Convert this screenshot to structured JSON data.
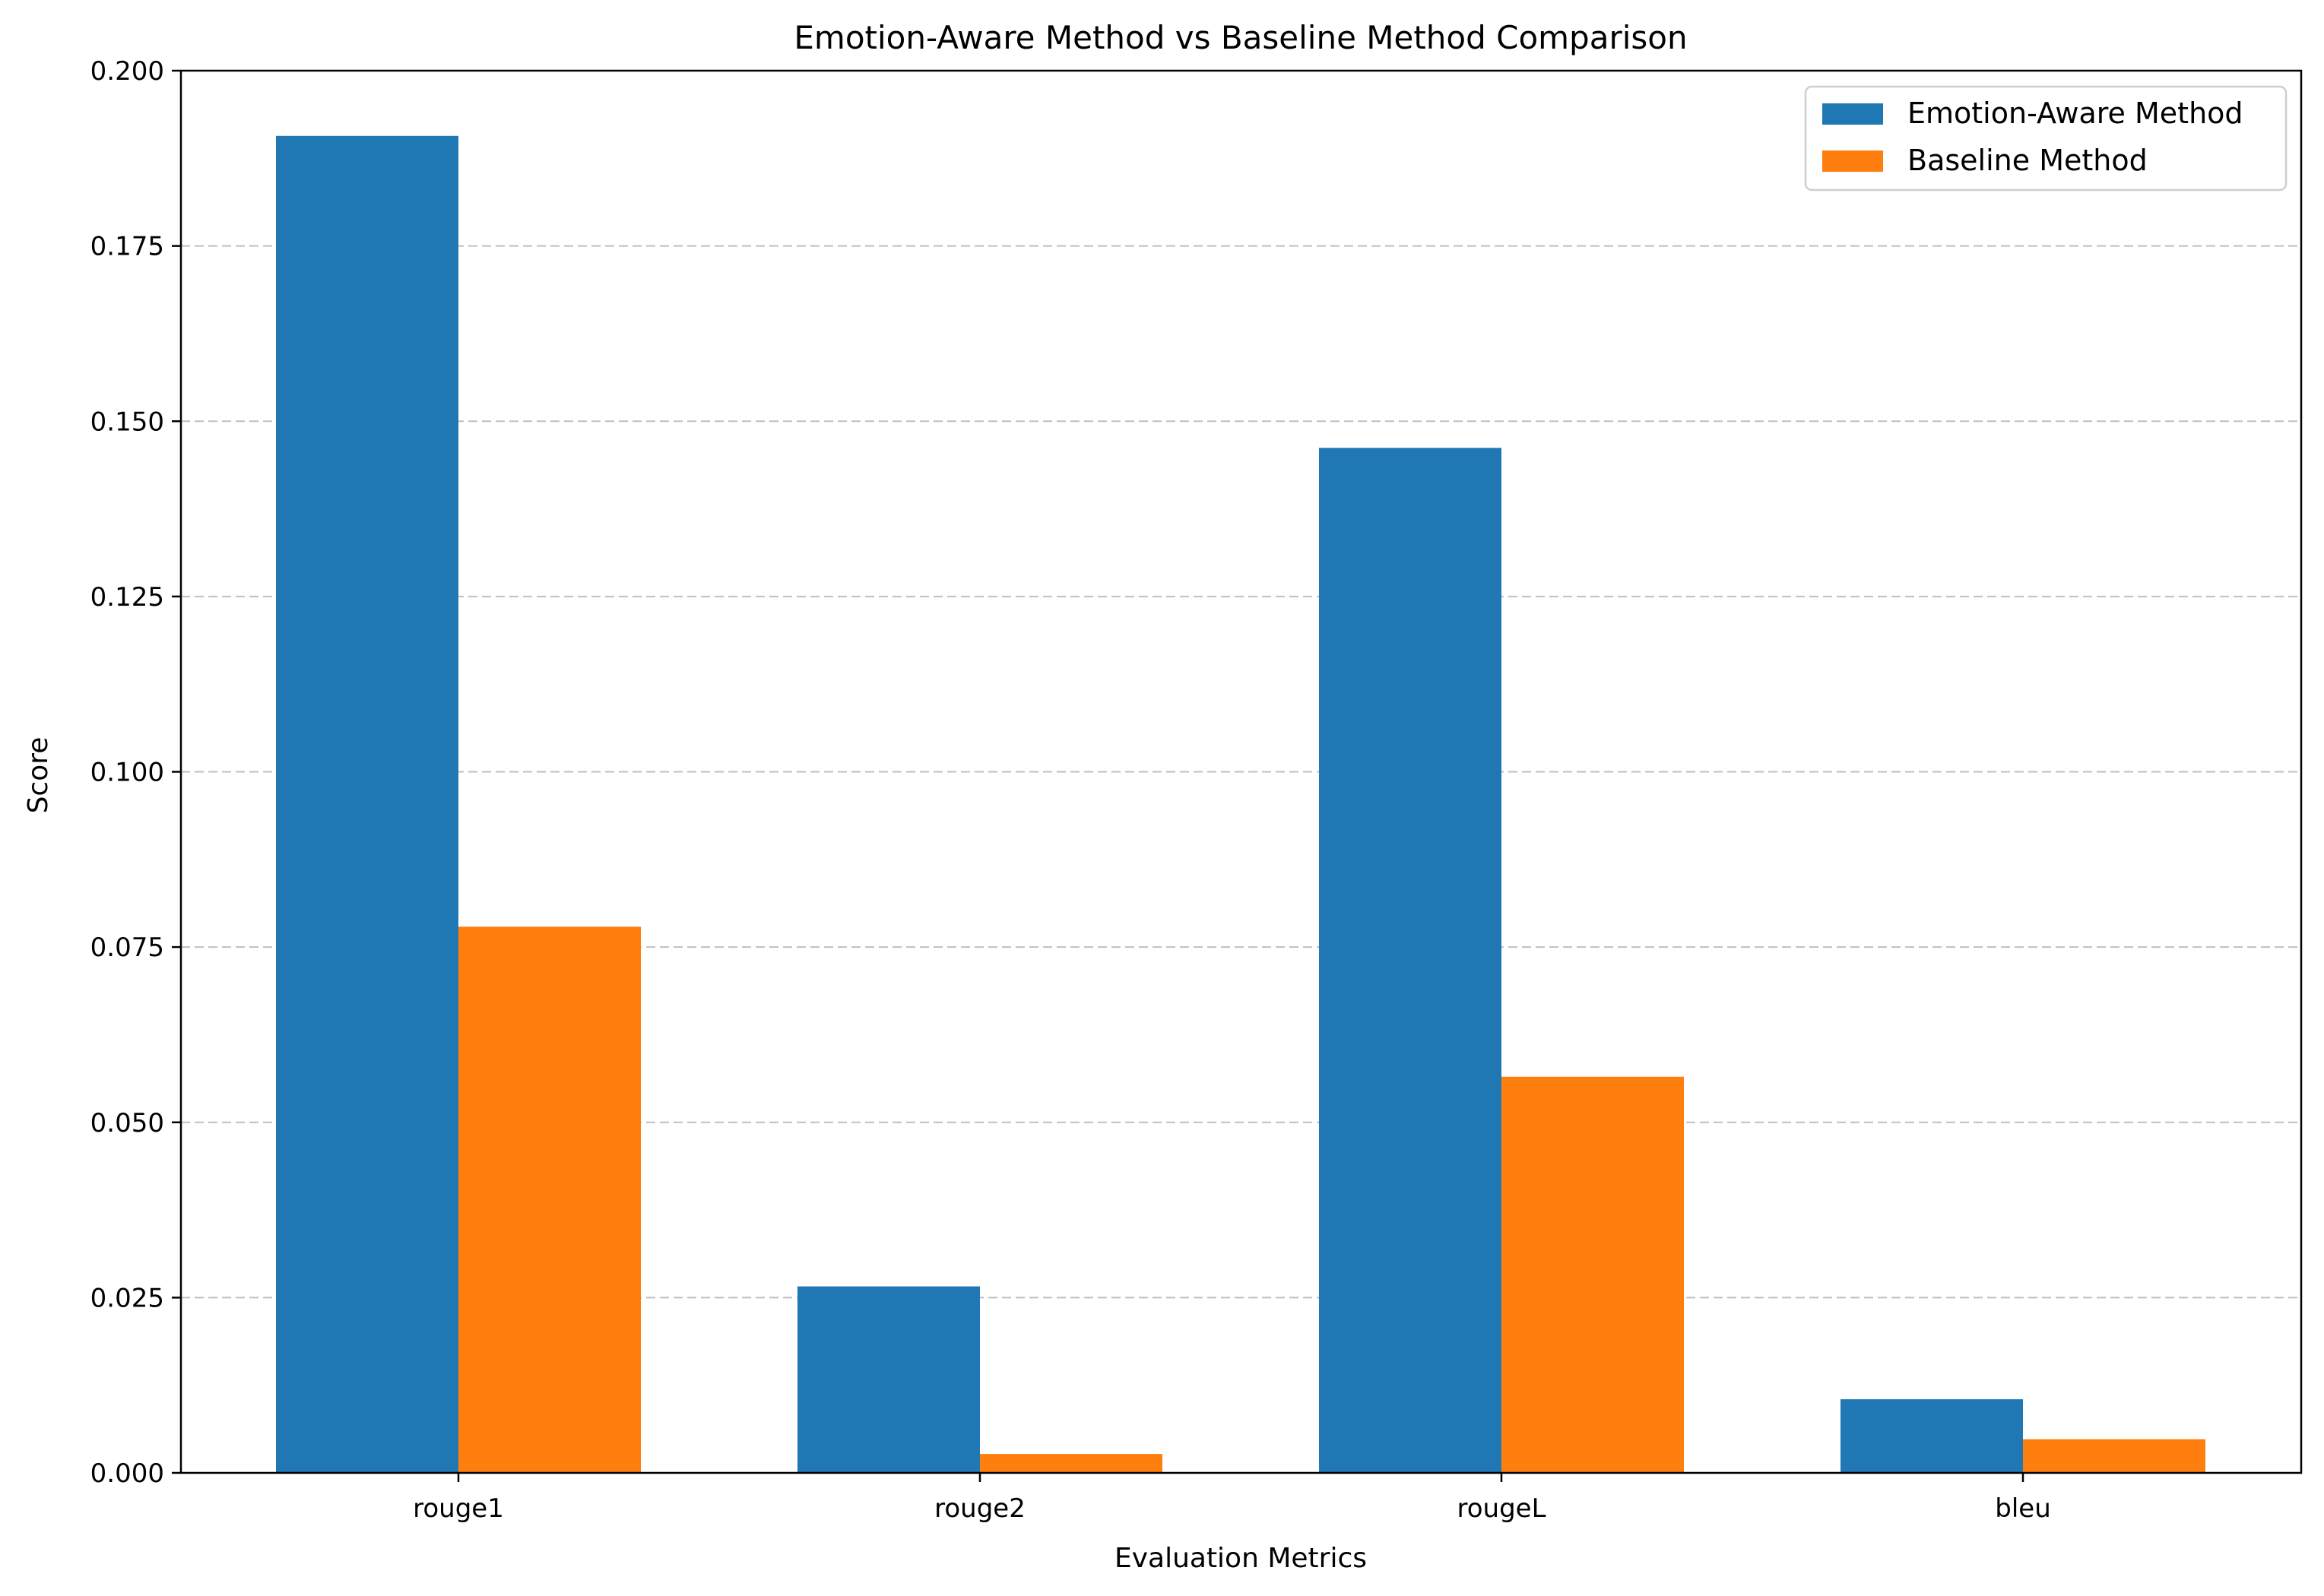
{
  "chart_data": {
    "type": "bar",
    "title": "Emotion-Aware Method vs Baseline Method Comparison",
    "xlabel": "Evaluation Metrics",
    "ylabel": "Score",
    "categories": [
      "rouge1",
      "rouge2",
      "rougeL",
      "bleu"
    ],
    "series": [
      {
        "name": "Emotion-Aware Method",
        "color": "#1f77b4",
        "values": [
          0.1907,
          0.0266,
          0.1462,
          0.0105
        ]
      },
      {
        "name": "Baseline Method",
        "color": "#ff7f0e",
        "values": [
          0.0779,
          0.0027,
          0.0565,
          0.0048
        ]
      }
    ],
    "ylim": [
      0,
      0.2
    ],
    "yticks": [
      0.0,
      0.025,
      0.05,
      0.075,
      0.1,
      0.125,
      0.15,
      0.175,
      0.2
    ],
    "ytick_labels": [
      "0.000",
      "0.025",
      "0.050",
      "0.075",
      "0.100",
      "0.125",
      "0.150",
      "0.175",
      "0.200"
    ],
    "grid": "y-dashed",
    "legend_position": "top-right"
  }
}
